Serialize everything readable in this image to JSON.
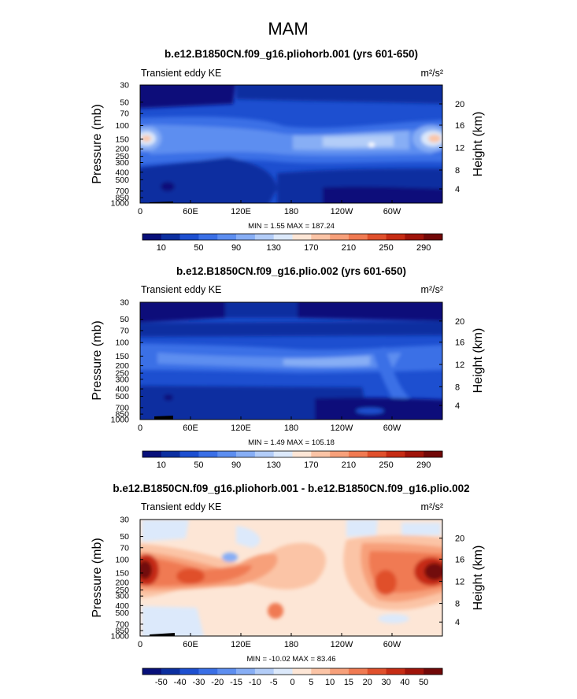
{
  "figure_title": "MAM",
  "chart_data": [
    {
      "type": "heatmap",
      "title": "b.e12.B1850CN.f09_g16.pliohorb.001 (yrs 601-650)",
      "variable": "Transient eddy KE",
      "units": "m²/s²",
      "xlabel": "",
      "ylabel": "Pressure (mb)",
      "y2label": "Height (km)",
      "x_ticks": [
        "0",
        "60E",
        "120E",
        "180",
        "120W",
        "60W"
      ],
      "y_ticks": [
        "30",
        "50",
        "70",
        "100",
        "150",
        "200",
        "250",
        "300",
        "400",
        "500",
        "700",
        "850",
        "1000"
      ],
      "y2_ticks": [
        "20",
        "16",
        "12",
        "8",
        "4"
      ],
      "min_label": "MIN =     1.55   MAX =  187.24",
      "min": 1.55,
      "max": 187.24,
      "colorbar_labels": [
        "10",
        "50",
        "90",
        "130",
        "170",
        "210",
        "250",
        "290"
      ],
      "colorbar_colors": [
        "#08107a",
        "#0c2fa0",
        "#1d4fd0",
        "#3a6fe6",
        "#5d8ef0",
        "#87aef5",
        "#b3cdf8",
        "#dce9fb",
        "#fde6d6",
        "#fbc4a6",
        "#f7a07a",
        "#f07a52",
        "#e0502c",
        "#c62c14",
        "#a0140a",
        "#720808"
      ]
    },
    {
      "type": "heatmap",
      "title": "b.e12.B1850CN.f09_g16.plio.002 (yrs 601-650)",
      "variable": "Transient eddy KE",
      "units": "m²/s²",
      "xlabel": "",
      "ylabel": "Pressure (mb)",
      "y2label": "Height (km)",
      "x_ticks": [
        "0",
        "60E",
        "120E",
        "180",
        "120W",
        "60W"
      ],
      "y_ticks": [
        "30",
        "50",
        "70",
        "100",
        "150",
        "200",
        "250",
        "300",
        "400",
        "500",
        "700",
        "850",
        "1000"
      ],
      "y2_ticks": [
        "20",
        "16",
        "12",
        "8",
        "4"
      ],
      "min_label": "MIN =     1.49   MAX =  105.18",
      "min": 1.49,
      "max": 105.18,
      "colorbar_labels": [
        "10",
        "50",
        "90",
        "130",
        "170",
        "210",
        "250",
        "290"
      ],
      "colorbar_colors": [
        "#08107a",
        "#0c2fa0",
        "#1d4fd0",
        "#3a6fe6",
        "#5d8ef0",
        "#87aef5",
        "#b3cdf8",
        "#dce9fb",
        "#fde6d6",
        "#fbc4a6",
        "#f7a07a",
        "#f07a52",
        "#e0502c",
        "#c62c14",
        "#a0140a",
        "#720808"
      ]
    },
    {
      "type": "heatmap",
      "title": "b.e12.B1850CN.f09_g16.pliohorb.001 - b.e12.B1850CN.f09_g16.plio.002",
      "variable": "Transient eddy KE",
      "units": "m²/s²",
      "xlabel": "",
      "ylabel": "Pressure (mb)",
      "y2label": "Height (km)",
      "x_ticks": [
        "0",
        "60E",
        "120E",
        "180",
        "120W",
        "60W"
      ],
      "y_ticks": [
        "30",
        "50",
        "70",
        "100",
        "150",
        "200",
        "250",
        "300",
        "400",
        "500",
        "700",
        "850",
        "1000"
      ],
      "y2_ticks": [
        "20",
        "16",
        "12",
        "8",
        "4"
      ],
      "min_label": "MIN =  -10.02   MAX =   83.46",
      "min": -10.02,
      "max": 83.46,
      "colorbar_labels": [
        "-50",
        "-40",
        "-30",
        "-20",
        "-15",
        "-10",
        "-5",
        "0",
        "5",
        "10",
        "15",
        "20",
        "30",
        "40",
        "50"
      ],
      "colorbar_colors": [
        "#08107a",
        "#0c2fa0",
        "#1d4fd0",
        "#3a6fe6",
        "#5d8ef0",
        "#87aef5",
        "#b3cdf8",
        "#dce9fb",
        "#fde6d6",
        "#fbc4a6",
        "#f7a07a",
        "#f07a52",
        "#e0502c",
        "#c62c14",
        "#a0140a",
        "#720808"
      ]
    }
  ]
}
